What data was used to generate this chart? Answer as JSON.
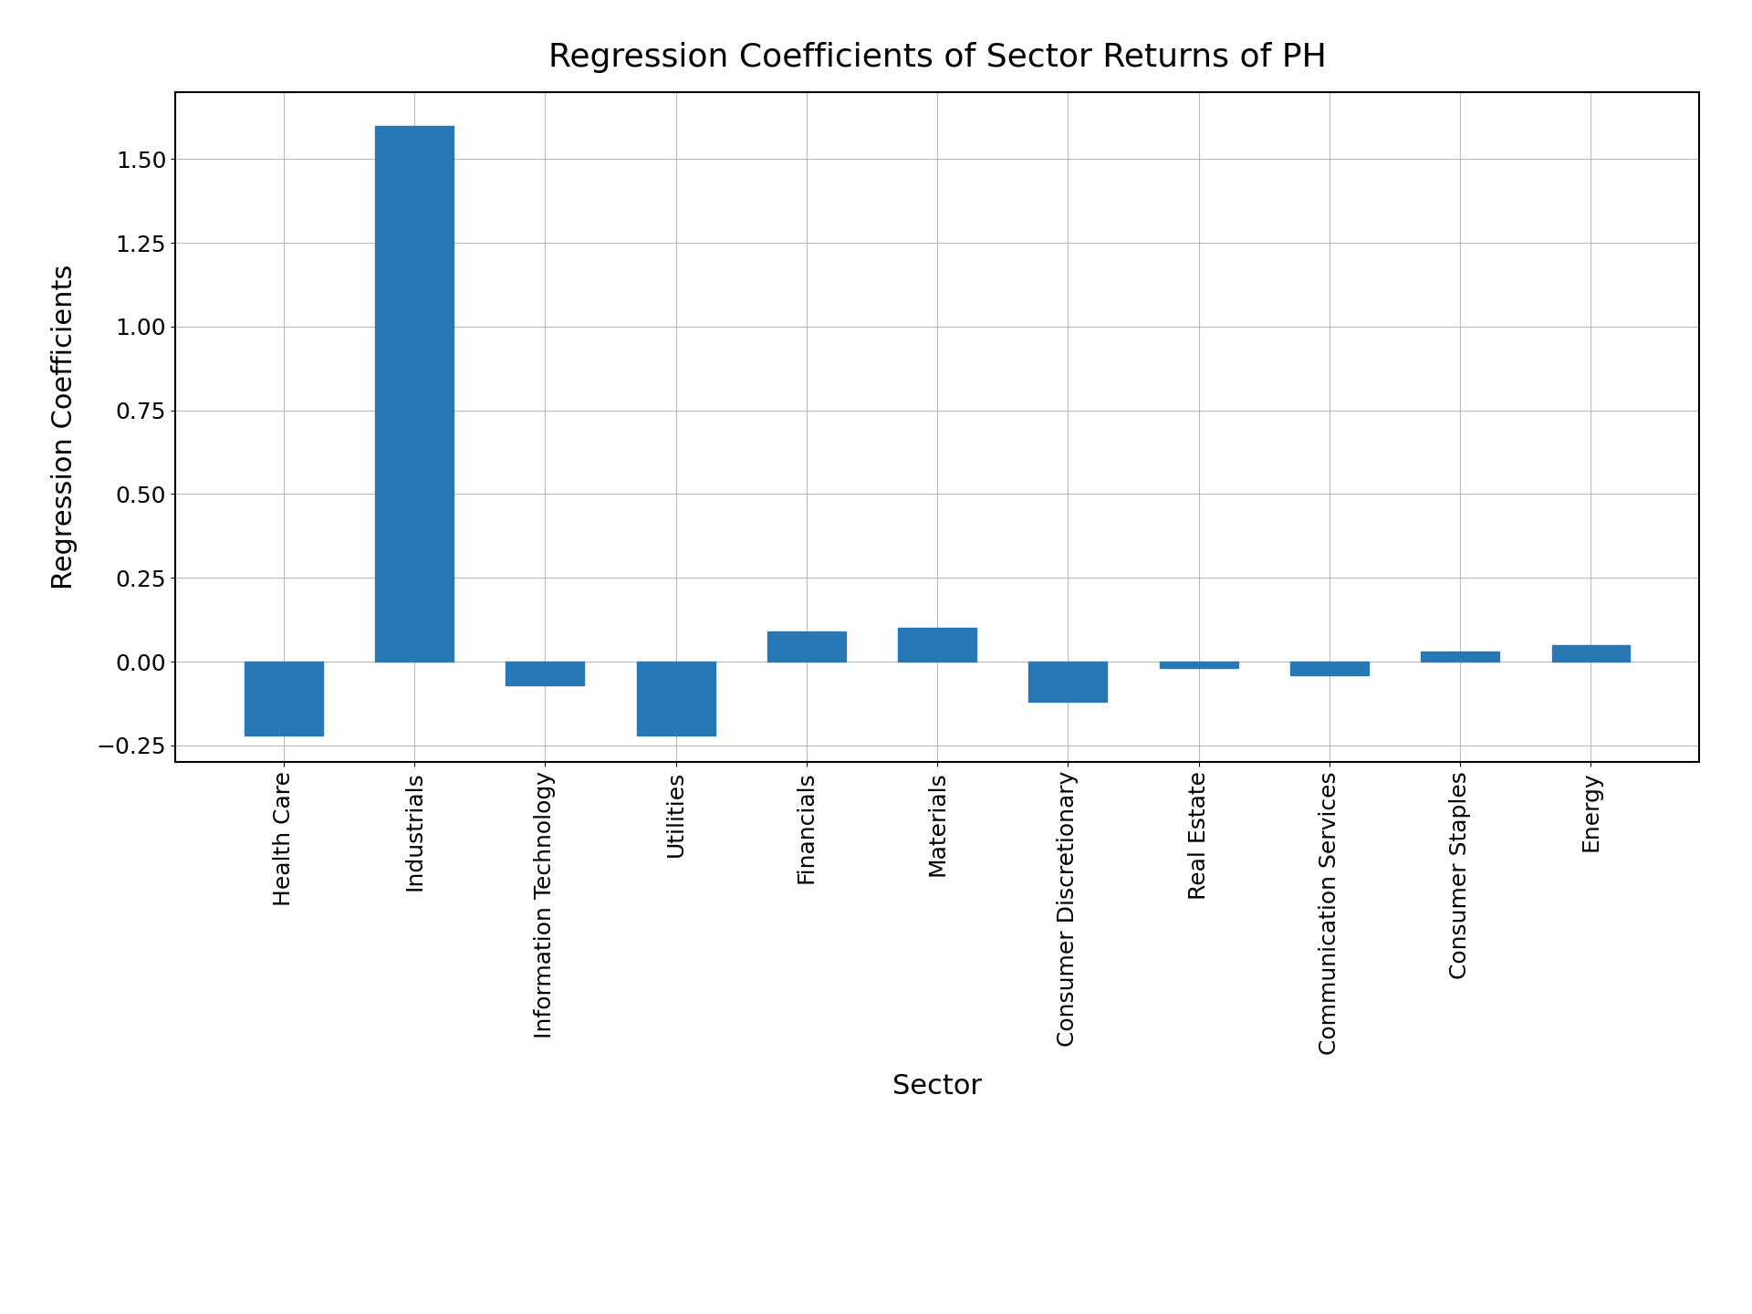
{
  "title": "Regression Coefficients of Sector Returns of PH",
  "xlabel": "Sector",
  "ylabel": "Regression Coefficients",
  "categories": [
    "Health Care",
    "Industrials",
    "Information Technology",
    "Utilities",
    "Financials",
    "Materials",
    "Consumer Discretionary",
    "Real Estate",
    "Communication Services",
    "Consumer Staples",
    "Energy"
  ],
  "values": [
    -0.22,
    1.6,
    -0.07,
    -0.22,
    0.09,
    0.1,
    -0.12,
    -0.02,
    -0.04,
    0.03,
    0.05
  ],
  "bar_color": "#2878b5",
  "bar_edgecolor": "#2878b5",
  "ylim": [
    -0.3,
    1.7
  ],
  "yticks": [
    -0.25,
    0.0,
    0.25,
    0.5,
    0.75,
    1.0,
    1.25,
    1.5
  ],
  "title_fontsize": 26,
  "label_fontsize": 22,
  "tick_fontsize": 18,
  "background_color": "#ffffff",
  "grid_color": "#bbbbbb",
  "figsize": [
    19.2,
    14.4
  ],
  "dpi": 100
}
